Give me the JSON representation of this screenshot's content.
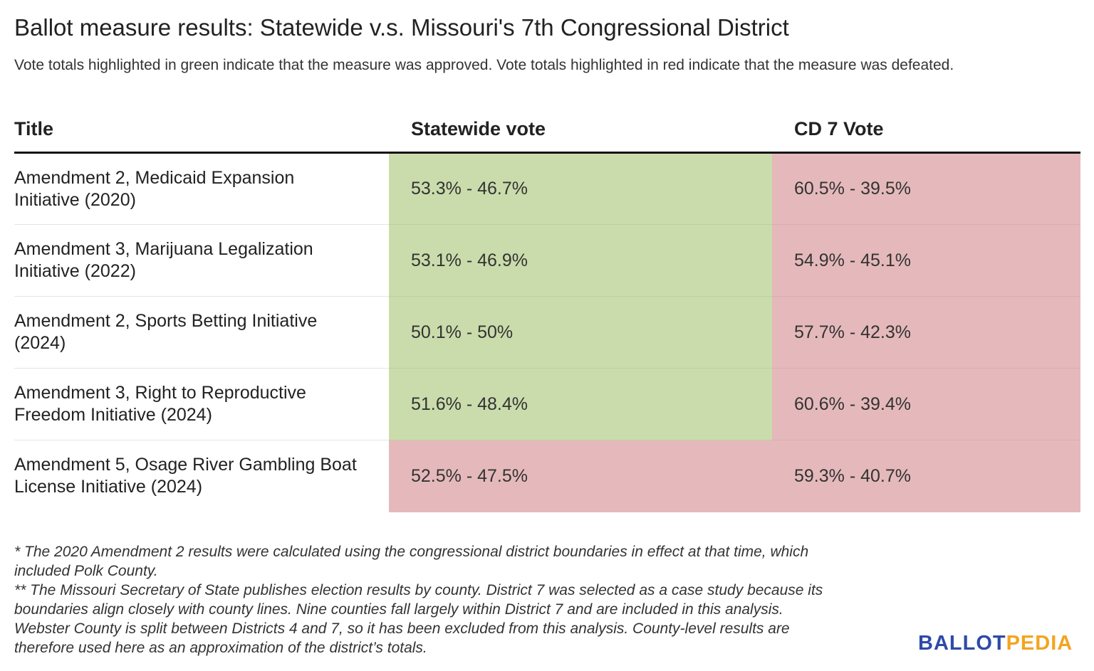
{
  "header": {
    "title": "Ballot measure results: Statewide v.s. Missouri's 7th Congressional District",
    "subtitle": "Vote totals highlighted in green indicate that the measure was approved. Vote totals highlighted in red indicate that the measure was defeated."
  },
  "colors": {
    "approved": "#cadcab",
    "defeated": "#e5b9bb",
    "logo_blue": "#2e4aa8",
    "logo_orange": "#f2a51f"
  },
  "chart_data": {
    "type": "table",
    "columns": [
      "Title",
      "Statewide vote",
      "CD 7 Vote"
    ],
    "rows": [
      {
        "title": "Amendment 2, Medicaid Expansion Initiative (2020)",
        "statewide": "53.3% - 46.7%",
        "statewide_status": "approved",
        "cd7": "60.5% - 39.5%",
        "cd7_status": "defeated"
      },
      {
        "title": "Amendment 3, Marijuana Legalization Initiative (2022)",
        "statewide": "53.1% - 46.9%",
        "statewide_status": "approved",
        "cd7": "54.9% - 45.1%",
        "cd7_status": "defeated"
      },
      {
        "title": "Amendment 2, Sports Betting Initiative (2024)",
        "statewide": "50.1% - 50%",
        "statewide_status": "approved",
        "cd7": "57.7% - 42.3%",
        "cd7_status": "defeated"
      },
      {
        "title": "Amendment 3, Right to Reproductive Freedom Initiative (2024)",
        "statewide": "51.6% - 48.4%",
        "statewide_status": "approved",
        "cd7": "60.6% - 39.4%",
        "cd7_status": "defeated"
      },
      {
        "title": "Amendment 5, Osage River Gambling Boat License Initiative (2024)",
        "statewide": "52.5% - 47.5%",
        "statewide_status": "defeated",
        "cd7": "59.3% - 40.7%",
        "cd7_status": "defeated"
      }
    ]
  },
  "notes": [
    "* The 2020 Amendment 2 results were calculated using the congressional district boundaries in effect at that time, which",
    "included Polk County.",
    "** The Missouri Secretary of State publishes election results by county. District 7 was selected as a case study because its",
    "boundaries align closely with county lines. Nine counties fall largely within District 7 and are included in this analysis.",
    "Webster County is split between Districts 4 and 7, so it has been excluded from this analysis. County-level results are",
    "therefore used here as an approximation of the district’s totals."
  ],
  "logo": {
    "part1": "BALLOT",
    "part2": "PEDIA"
  }
}
